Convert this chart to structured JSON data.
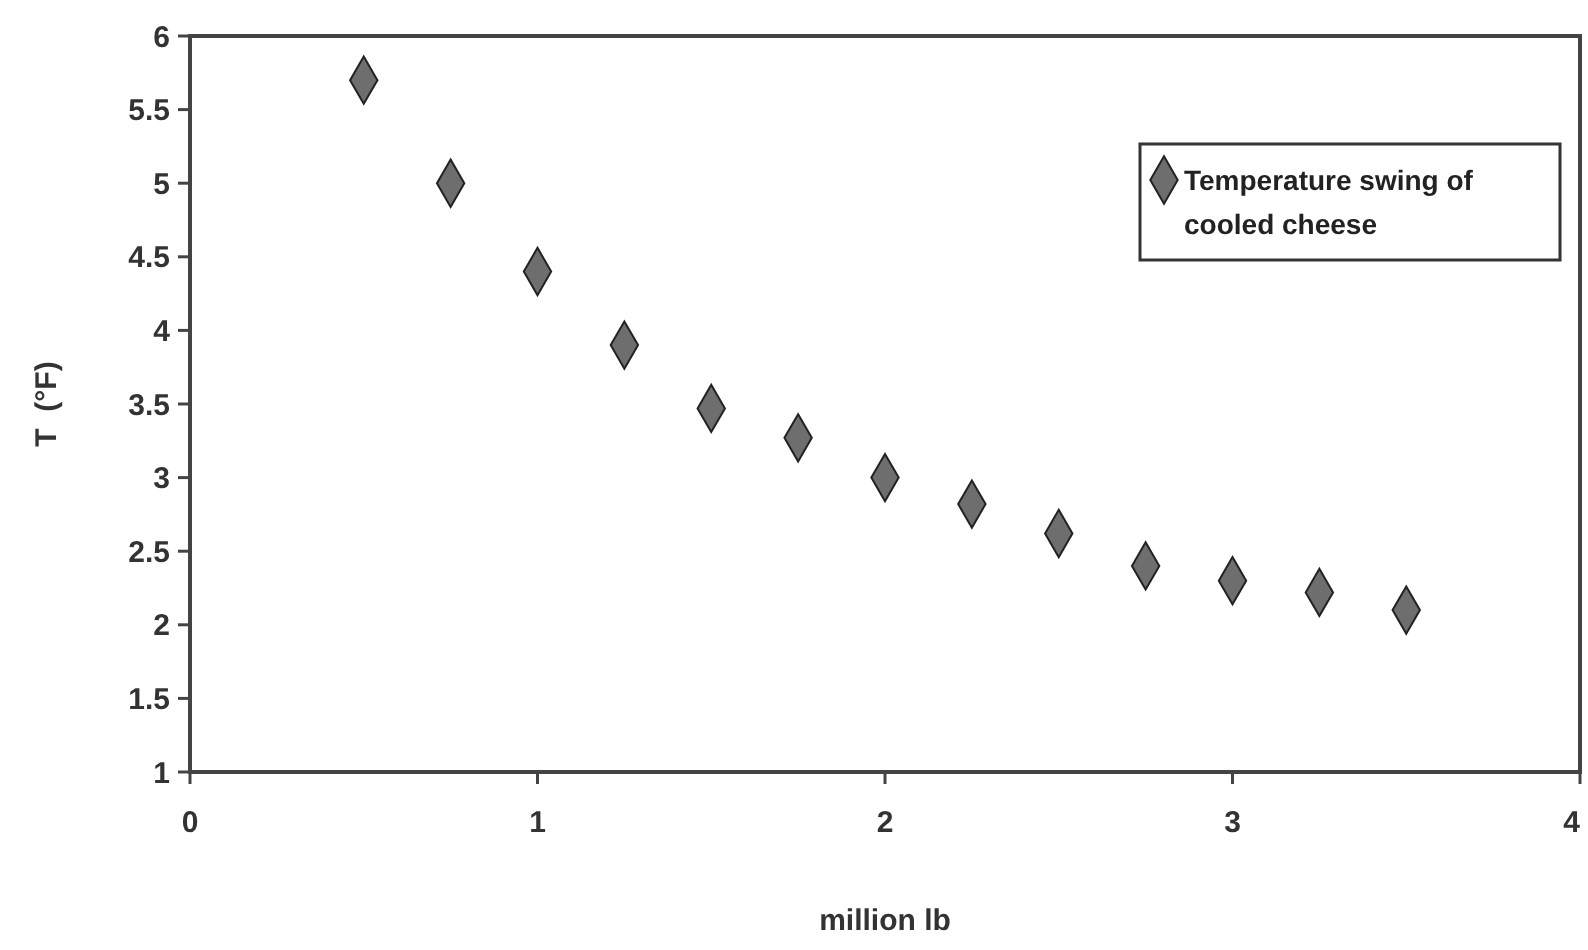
{
  "chart_data": {
    "type": "scatter",
    "xlabel": "million  lb",
    "ylabel": "T  (°F)",
    "x": [
      0.5,
      0.75,
      1,
      1.25,
      1.5,
      1.75,
      2,
      2.25,
      2.5,
      2.75,
      3,
      3.25,
      3.5
    ],
    "series": [
      {
        "name": "Temperature swing of cooled cheese",
        "color": "#6e6e6e",
        "values": [
          5.7,
          5.0,
          4.4,
          3.9,
          3.47,
          3.27,
          3.0,
          2.82,
          2.62,
          2.4,
          2.3,
          2.22,
          2.1
        ]
      }
    ],
    "xlim": [
      0,
      4
    ],
    "xticks": [
      0,
      1,
      2,
      3,
      4
    ],
    "ylim": [
      1,
      6
    ],
    "yticks": [
      1,
      1.5,
      2,
      2.5,
      3,
      3.5,
      4,
      4.5,
      5,
      5.5,
      6
    ],
    "marker": "diamond",
    "legend": "top right",
    "grid": false
  }
}
